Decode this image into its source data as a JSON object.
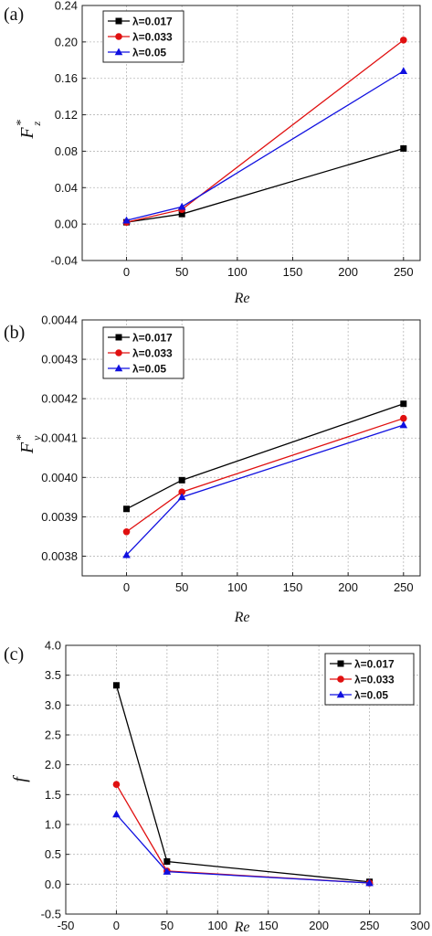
{
  "chart_data": [
    {
      "type": "line",
      "panel_label": "(a)",
      "xlabel": "Re",
      "ylabel": "F",
      "ylabel_sup": "*",
      "ylabel_sub": "z",
      "xlim": [
        -40,
        265
      ],
      "ylim": [
        -0.04,
        0.24
      ],
      "x_ticks": [
        "0",
        "50",
        "100",
        "150",
        "200",
        "250"
      ],
      "y_ticks": [
        "-0.04",
        "0.00",
        "0.04",
        "0.08",
        "0.12",
        "0.16",
        "0.20",
        "0.24"
      ],
      "grid": true,
      "legend_position": "top-left",
      "x": [
        0,
        50,
        250
      ],
      "series": [
        {
          "name": "λ=0.017",
          "color": "#000000",
          "marker": "square",
          "values": [
            0.002,
            0.011,
            0.083
          ]
        },
        {
          "name": "λ=0.033",
          "color": "#e01010",
          "marker": "circle",
          "values": [
            0.002,
            0.016,
            0.202
          ]
        },
        {
          "name": "λ=0.05",
          "color": "#1010e0",
          "marker": "triangle",
          "values": [
            0.004,
            0.019,
            0.168
          ]
        }
      ]
    },
    {
      "type": "line",
      "panel_label": "(b)",
      "xlabel": "Re",
      "ylabel": "F",
      "ylabel_sup": "*",
      "ylabel_sub": "y",
      "xlim": [
        -40,
        265
      ],
      "ylim": [
        0.00375,
        0.0044
      ],
      "x_ticks": [
        "0",
        "50",
        "100",
        "150",
        "200",
        "250"
      ],
      "y_ticks": [
        "0.0038",
        "0.0039",
        "0.0040",
        "0.0041",
        "0.0042",
        "0.0043",
        "0.0044"
      ],
      "grid": true,
      "legend_position": "top-left",
      "x": [
        0,
        50,
        250
      ],
      "series": [
        {
          "name": "λ=0.017",
          "color": "#000000",
          "marker": "square",
          "values": [
            0.00392,
            0.003993,
            0.004187
          ]
        },
        {
          "name": "λ=0.033",
          "color": "#e01010",
          "marker": "circle",
          "values": [
            0.003862,
            0.003963,
            0.00415
          ]
        },
        {
          "name": "λ=0.05",
          "color": "#1010e0",
          "marker": "triangle",
          "values": [
            0.003803,
            0.00395,
            0.004133
          ]
        }
      ]
    },
    {
      "type": "line",
      "panel_label": "(c)",
      "xlabel": "Re",
      "ylabel": "f",
      "ylabel_sup": "",
      "ylabel_sub": "",
      "xlim": [
        -50,
        300
      ],
      "ylim": [
        -0.5,
        4.0
      ],
      "x_ticks": [
        "-50",
        "0",
        "50",
        "100",
        "150",
        "200",
        "250",
        "300"
      ],
      "y_ticks": [
        "-0.5",
        "0.0",
        "0.5",
        "1.0",
        "1.5",
        "2.0",
        "2.5",
        "3.0",
        "3.5",
        "4.0"
      ],
      "grid": true,
      "legend_position": "top-right",
      "x": [
        0,
        50,
        250
      ],
      "series": [
        {
          "name": "λ=0.017",
          "color": "#000000",
          "marker": "square",
          "values": [
            3.33,
            0.38,
            0.04
          ]
        },
        {
          "name": "λ=0.033",
          "color": "#e01010",
          "marker": "circle",
          "values": [
            1.67,
            0.22,
            0.02
          ]
        },
        {
          "name": "λ=0.05",
          "color": "#1010e0",
          "marker": "triangle",
          "values": [
            1.17,
            0.21,
            0.02
          ]
        }
      ]
    }
  ]
}
